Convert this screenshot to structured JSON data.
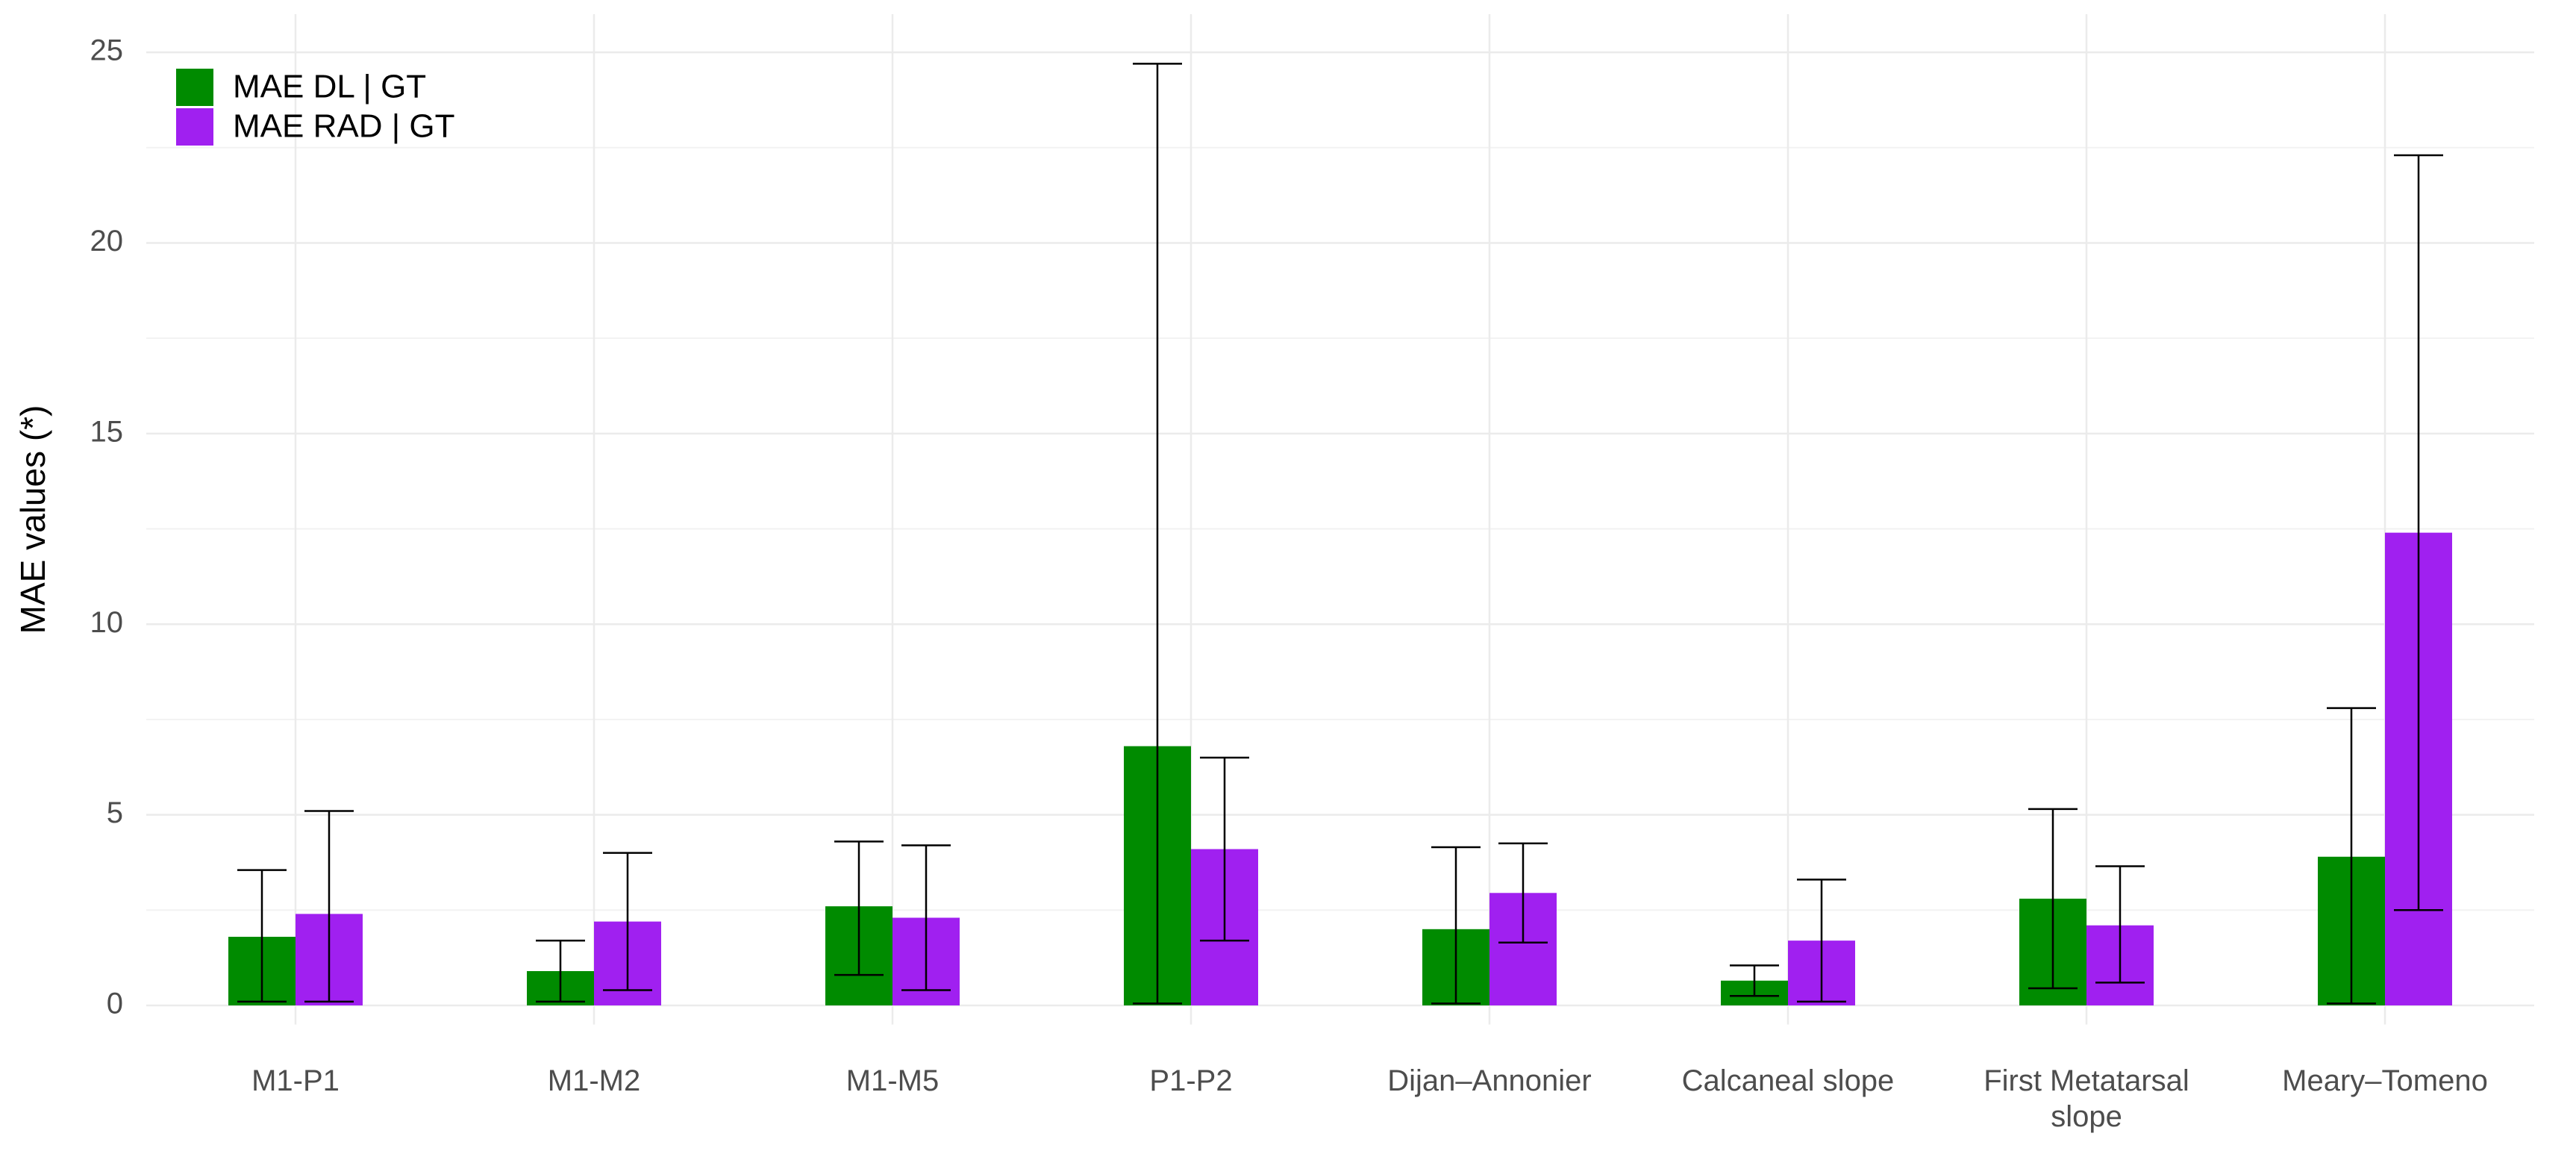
{
  "chart_data": {
    "type": "bar",
    "y_label": "MAE values (*)",
    "categories": [
      "M1-P1",
      "M1-M2",
      "M1-M5",
      "P1-P2",
      "Dijan–Annonier",
      "Calcaneal slope",
      "First Metatarsal slope",
      "Meary–Tomeno"
    ],
    "series": [
      {
        "name": "MAE DL | GT",
        "color": "#008b00",
        "values": [
          1.8,
          0.9,
          2.6,
          6.8,
          2.0,
          0.65,
          2.8,
          3.9
        ],
        "lower": [
          0.1,
          0.1,
          0.8,
          0.05,
          0.05,
          0.25,
          0.45,
          0.05
        ],
        "upper": [
          3.55,
          1.7,
          4.3,
          24.7,
          4.15,
          1.05,
          5.15,
          7.8
        ]
      },
      {
        "name": "MAE RAD | GT",
        "color": "#a020f0",
        "values": [
          2.4,
          2.2,
          2.3,
          4.1,
          2.95,
          1.7,
          2.1,
          12.4
        ],
        "lower": [
          0.1,
          0.4,
          0.4,
          1.7,
          1.65,
          0.1,
          0.6,
          2.5
        ],
        "upper": [
          5.1,
          4.0,
          4.2,
          6.5,
          4.25,
          3.3,
          3.65,
          22.3
        ]
      }
    ],
    "ylim": [
      -0.5,
      26
    ],
    "yticks": [
      0,
      5,
      10,
      15,
      20,
      25
    ],
    "grid": true,
    "legend": "top-left"
  }
}
